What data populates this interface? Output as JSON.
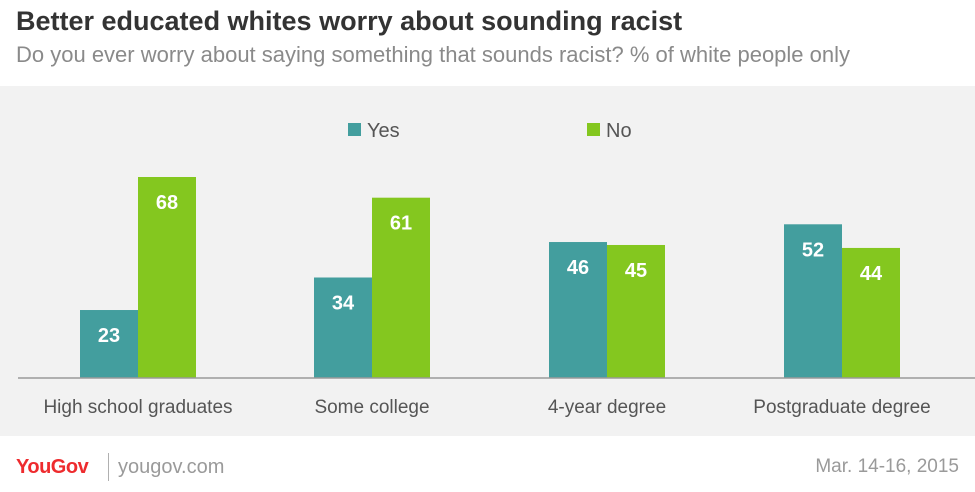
{
  "header": {
    "title": "Better educated whites worry about sounding racist",
    "subtitle": "Do you ever worry about saying something that sounds racist? % of white people only"
  },
  "footer": {
    "logo": "YouGov",
    "site": "yougov.com",
    "date": "Mar. 14-16, 2015"
  },
  "chart_data": {
    "type": "bar",
    "categories": [
      "High school graduates",
      "Some college",
      "4-year degree",
      "Postgraduate degree"
    ],
    "series": [
      {
        "name": "Yes",
        "color": "#439e9e",
        "values": [
          23,
          34,
          46,
          52
        ]
      },
      {
        "name": "No",
        "color": "#84c71f",
        "values": [
          68,
          61,
          45,
          44
        ]
      }
    ],
    "legend_position": "top-center",
    "grid": false,
    "ylim": [
      0,
      70
    ]
  }
}
